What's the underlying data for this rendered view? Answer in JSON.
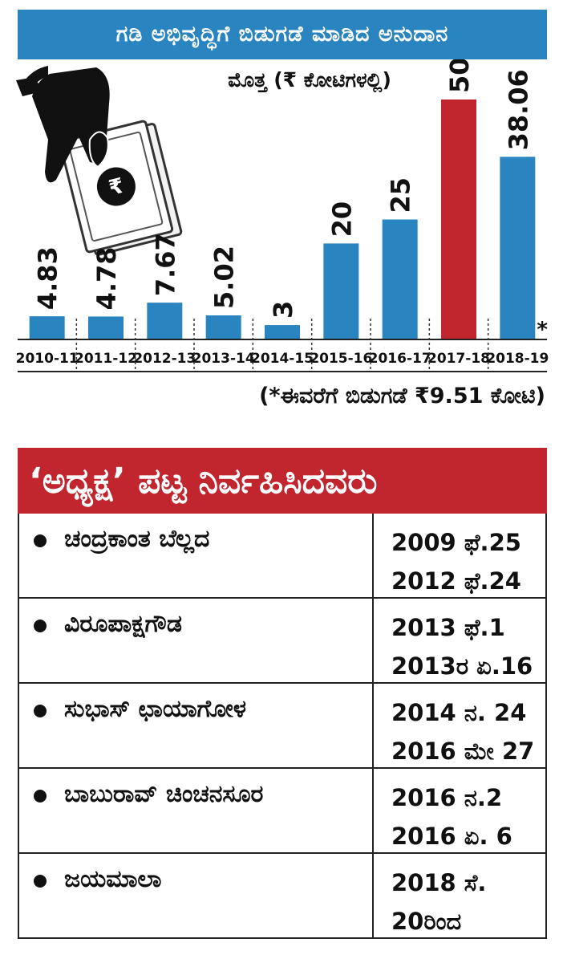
{
  "chart_header": "ಗಡಿ ಅಭಿವೃದ್ಧಿಗೆ ಬಿಡುಗಡೆ ಮಾಡಿದ ಅನುದಾನ",
  "chart_data": {
    "type": "bar",
    "title": "ಗಡಿ ಅಭಿವೃದ್ಧಿಗೆ ಬಿಡುಗಡೆ ಮಾಡಿದ ಅನುದಾನ",
    "ylabel": "ಮೊತ್ತ (₹ ಕೋಟಿಗಳಲ್ಲಿ)",
    "categories": [
      "2010-11",
      "2011-12",
      "2012-13",
      "2013-14",
      "2014-15",
      "2015-16",
      "2016-17",
      "2017-18",
      "2018-19"
    ],
    "values": [
      4.83,
      4.78,
      7.67,
      5.02,
      3,
      20,
      25,
      50,
      38.06
    ],
    "value_labels": [
      "4.83",
      "4.78",
      "7.67",
      "5.02",
      "3",
      "20",
      "25",
      "50",
      "38.06"
    ],
    "ylim": [
      0,
      50
    ],
    "grid": false,
    "colors": {
      "default": "#2a84bf",
      "highlight": "#c1262e"
    },
    "highlight_index": 7,
    "asterisk_index": 8,
    "asterisk": "*"
  },
  "footnote": "(*ಈವರೆಗೆ ಬಿಡುಗಡೆ ₹9.51 ಕೋಟಿ)",
  "illustration": "hand-holding-rupee-note-icon",
  "table": {
    "title": "‘ಅಧ್ಯಕ್ಷ’ ಪಟ್ಟ ನಿರ್ವಹಿಸಿದವರು",
    "rows": [
      {
        "name": "ಚಂದ್ರಕಾಂತ ಬೆಲ್ಲದ",
        "dates": [
          "2009 ಫೆ.25",
          "2012 ಫೆ.24"
        ]
      },
      {
        "name": "ವಿರೂಪಾಕ್ಷಗೌಡ",
        "dates": [
          "2013 ಫೆ.1",
          "2013ರ ಏ.16"
        ]
      },
      {
        "name": "ಸುಭಾಸ್ ಛಾಯಾಗೋಳ",
        "dates": [
          "2014 ನ. 24",
          "2016 ಮೇ 27"
        ]
      },
      {
        "name": "ಬಾಬುರಾವ್ ಚಿಂಚನಸೂರ",
        "dates": [
          "2016 ನ.2",
          "2016 ಏ. 6"
        ]
      },
      {
        "name": "ಜಯಮಾಲಾ",
        "dates": [
          "2018 ಸೆ.",
          "20ರಿಂದ"
        ]
      }
    ]
  }
}
